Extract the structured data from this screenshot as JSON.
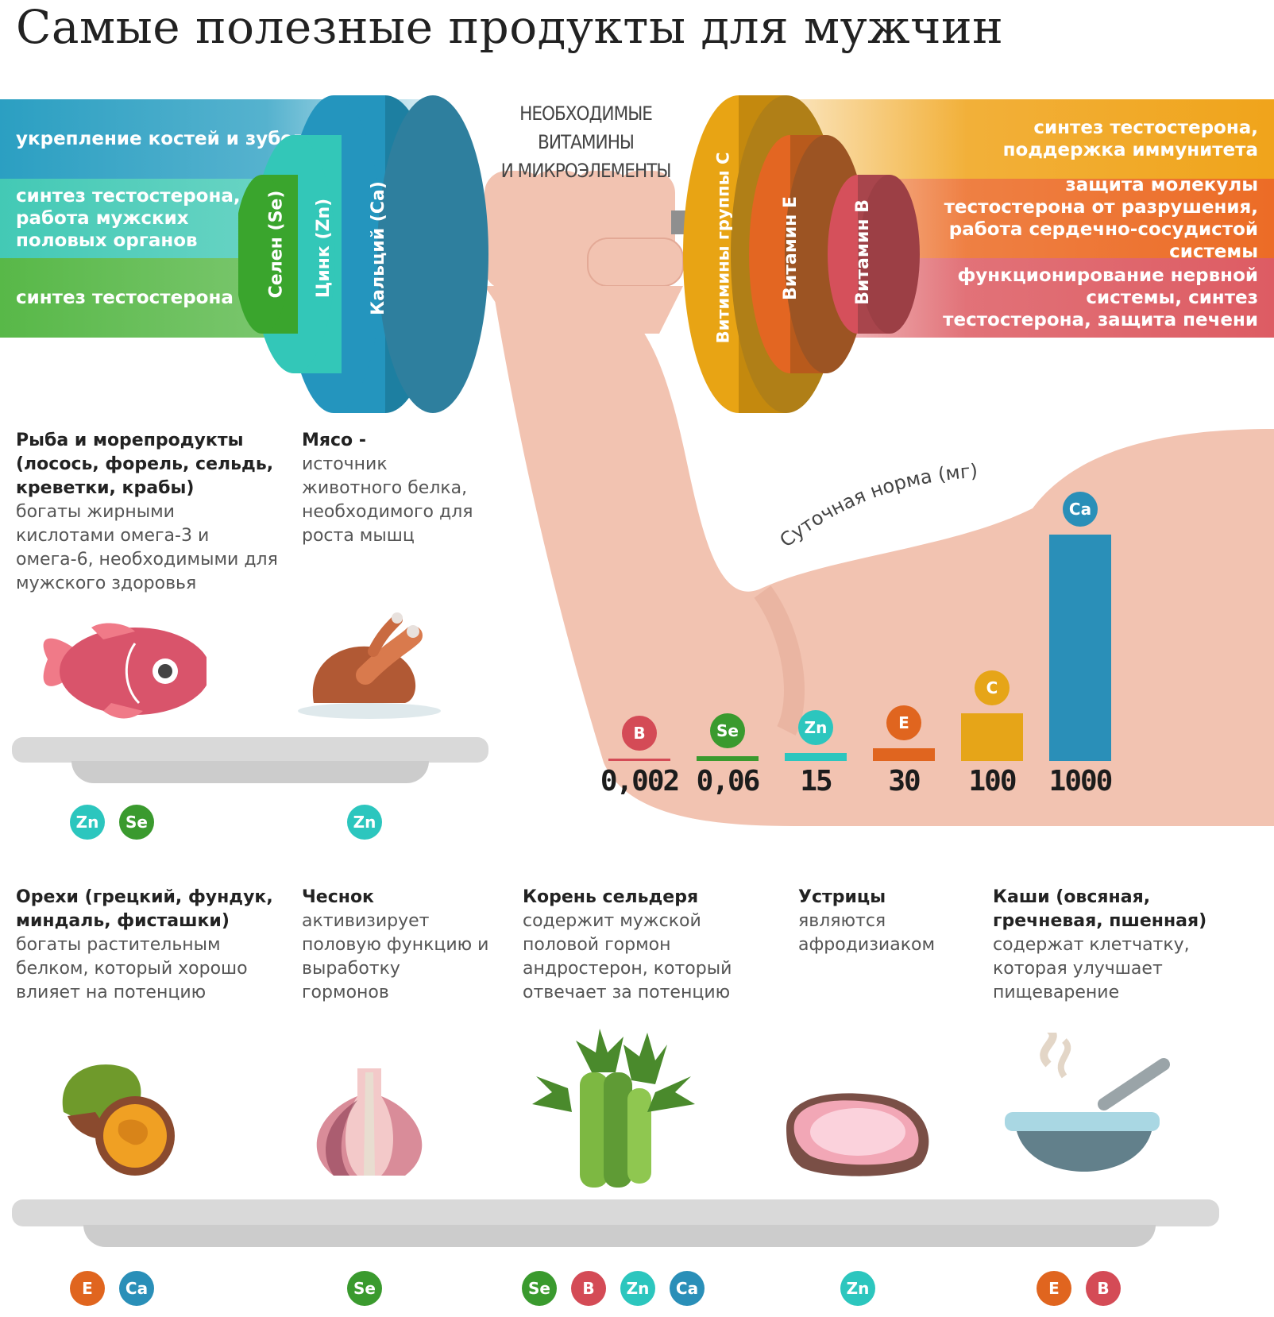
{
  "title": "Самые полезные продукты для мужчин",
  "header_center": {
    "line1": "НЕОБХОДИМЫЕ ВИТАМИНЫ",
    "line2": "И МИКРОЭЛЕМЕНТЫ"
  },
  "left_bands": [
    {
      "text": "укрепление костей и зубов",
      "color": "#2b9fc2"
    },
    {
      "text": "синтез тестостерона, работа мужских половых органов",
      "color": "#43c9b5"
    },
    {
      "text": "синтез тестостерона",
      "color": "#58b848"
    }
  ],
  "right_bands": [
    {
      "text": "синтез тестостерона, поддержка иммунитета",
      "color": "#f0a41b"
    },
    {
      "text": "защита молекулы тестостерона от разрушения, работа сердечно-сосудистой системы",
      "color": "#ec6c26"
    },
    {
      "text": "функционирование нервной системы, синтез тестостерона, защита печени",
      "color": "#dd5c63"
    }
  ],
  "left_plates": [
    {
      "label": "Селен (Se)",
      "color": "#3aa52d"
    },
    {
      "label": "Цинк (Zn)",
      "color": "#33c7b8"
    },
    {
      "label": "Кальций (Ca)",
      "color": "#2495be"
    }
  ],
  "right_plates": [
    {
      "label": "Витимины группы С",
      "color": "#e8a414"
    },
    {
      "label": "Витамин Е",
      "color": "#e36622"
    },
    {
      "label": "Витамин В",
      "color": "#d5505b"
    }
  ],
  "chart_data": {
    "type": "bar",
    "title": "Суточная норма (мг)",
    "categories": [
      "B",
      "Se",
      "Zn",
      "E",
      "C",
      "Ca"
    ],
    "labels": [
      "0,002",
      "0,06",
      "15",
      "30",
      "100",
      "1000"
    ],
    "values": [
      0.002,
      0.06,
      15,
      30,
      100,
      1000
    ],
    "colors": [
      "#d44b56",
      "#3a9a2e",
      "#2cc6be",
      "#e0651f",
      "#e6a518",
      "#2a8fb8"
    ]
  },
  "products_top": [
    {
      "title": "Рыба и морепродукты (лосось, форель, сельдь, креветки, крабы)",
      "desc": "богаты жирными кислотами омега-3 и омега-6, необходимыми для мужского здоровья",
      "badges": [
        "Zn",
        "Se"
      ]
    },
    {
      "title": "Мясо -",
      "desc": "источник животного белка, необходимого для роста мышц",
      "badges": [
        "Zn"
      ]
    }
  ],
  "products_bottom": [
    {
      "title": "Орехи (грецкий, фундук, миндаль, фисташки)",
      "desc": "богаты растительным белком, который хорошо влияет на потенцию",
      "badges": [
        "E",
        "Ca"
      ]
    },
    {
      "title": "Чеснок",
      "desc": "активизирует половую функцию и выработку гормонов",
      "badges": [
        "Se"
      ]
    },
    {
      "title": "Корень сельдеря",
      "desc": "содержит мужской половой гормон андростерон, который отвечает за потенцию",
      "badges": [
        "Se",
        "B",
        "Zn",
        "Ca"
      ]
    },
    {
      "title": "Устрицы",
      "desc": "являются афродизиаком",
      "badges": [
        "Zn"
      ]
    },
    {
      "title": "Каши (овсяная, гречневая, пшенная)",
      "desc": "содержат клетчатку, которая улучшает пищеварение",
      "badges": [
        "E",
        "B"
      ]
    }
  ]
}
